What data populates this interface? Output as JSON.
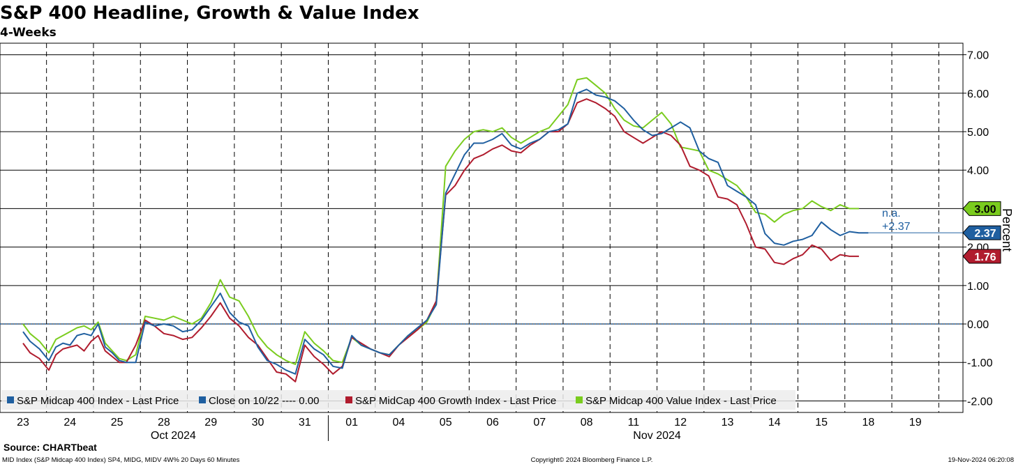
{
  "chart_data": {
    "type": "line",
    "title": "S&P 400 Headline, Growth & Value Index",
    "subtitle": "4-Weeks",
    "ylabel": "Percent",
    "ylim": [
      -2.3,
      7.3
    ],
    "yticks": [
      "7.00",
      "6.00",
      "5.00",
      "4.00",
      "3.00",
      "2.00",
      "1.00",
      "0.00",
      "-1.00",
      "-2.00"
    ],
    "grid": true,
    "days": [
      "23",
      "24",
      "25",
      "28",
      "29",
      "30",
      "31",
      "01",
      "04",
      "05",
      "06",
      "07",
      "08",
      "11",
      "12",
      "13",
      "14",
      "15",
      "18",
      "19"
    ],
    "months": [
      {
        "label": "Oct 2024",
        "center_day_index": 3.2
      },
      {
        "label": "Nov 2024",
        "center_day_index": 13.5
      }
    ],
    "legend": {
      "placement": "bottom-left",
      "entries": [
        {
          "label": "S&P Midcap 400 Index - Last Price",
          "color": "#1f5fa0"
        },
        {
          "label": "Close on 10/22 ---- 0.00",
          "color": "#1f5fa0"
        },
        {
          "label": "S&P MidCap 400 Growth Index - Last Price",
          "color": "#b01c2e"
        },
        {
          "label": "S&P Midcap 400 Value Index - Last Price",
          "color": "#7acc1e"
        }
      ]
    },
    "series": [
      {
        "name": "S&P Midcap 400 Index - Last Price",
        "color": "#1f5fa0",
        "x": [
          0,
          0.15,
          0.35,
          0.55,
          0.7,
          0.85,
          1.0,
          1.15,
          1.3,
          1.45,
          1.6,
          1.75,
          1.9,
          2.05,
          2.2,
          2.4,
          2.6,
          2.8,
          3.0,
          3.2,
          3.4,
          3.6,
          3.8,
          4.0,
          4.2,
          4.4,
          4.6,
          4.8,
          5.0,
          5.2,
          5.4,
          5.6,
          5.8,
          6.0,
          6.2,
          6.4,
          6.6,
          6.8,
          7.0,
          7.2,
          7.4,
          7.6,
          7.8,
          8.0,
          8.2,
          8.4,
          8.6,
          8.8,
          9.0,
          9.2,
          9.4,
          9.6,
          9.8,
          10.0,
          10.2,
          10.4,
          10.6,
          10.8,
          11.0,
          11.2,
          11.4,
          11.6,
          11.8,
          12.0,
          12.2,
          12.4,
          12.6,
          12.8,
          13.0,
          13.2,
          13.4,
          13.6,
          13.8,
          14.0,
          14.2,
          14.4,
          14.6,
          14.8,
          15.0,
          15.2,
          15.4,
          15.6,
          15.8,
          16.0,
          16.2,
          16.4,
          16.6,
          16.8,
          17.0,
          17.2,
          17.4,
          17.6,
          17.8,
          18.0
        ],
        "y": [
          -0.2,
          -0.45,
          -0.65,
          -0.95,
          -0.6,
          -0.5,
          -0.55,
          -0.3,
          -0.25,
          -0.3,
          0.0,
          -0.6,
          -0.75,
          -0.95,
          -1.0,
          -1.0,
          0.05,
          -0.05,
          0.0,
          -0.05,
          -0.2,
          -0.15,
          0.1,
          0.45,
          0.8,
          0.3,
          0.05,
          -0.05,
          -0.6,
          -0.95,
          -1.05,
          -1.2,
          -1.3,
          -0.4,
          -0.65,
          -0.8,
          -1.1,
          -1.15,
          -0.3,
          -0.55,
          -0.65,
          -0.75,
          -0.8,
          -0.55,
          -0.3,
          -0.1,
          0.1,
          0.5,
          3.4,
          3.9,
          4.4,
          4.7,
          4.7,
          4.8,
          4.95,
          4.65,
          4.55,
          4.7,
          4.8,
          5.0,
          5.05,
          5.2,
          6.0,
          6.1,
          5.95,
          5.9,
          5.8,
          5.6,
          5.3,
          5.05,
          4.9,
          4.95,
          5.1,
          5.25,
          5.1,
          4.5,
          4.3,
          4.2,
          3.6,
          3.45,
          3.3,
          3.1,
          2.35,
          2.1,
          2.05,
          2.15,
          2.2,
          2.3,
          2.65,
          2.45,
          2.3,
          2.4,
          2.37,
          2.37
        ]
      },
      {
        "name": "S&P MidCap 400 Growth Index - Last Price",
        "color": "#b01c2e",
        "x": [
          0,
          0.15,
          0.35,
          0.55,
          0.7,
          0.85,
          1.0,
          1.15,
          1.3,
          1.45,
          1.6,
          1.75,
          1.9,
          2.05,
          2.2,
          2.4,
          2.6,
          2.8,
          3.0,
          3.2,
          3.4,
          3.6,
          3.8,
          4.0,
          4.2,
          4.4,
          4.6,
          4.8,
          5.0,
          5.2,
          5.4,
          5.6,
          5.8,
          6.0,
          6.2,
          6.4,
          6.6,
          6.8,
          7.0,
          7.2,
          7.4,
          7.6,
          7.8,
          8.0,
          8.2,
          8.4,
          8.6,
          8.8,
          9.0,
          9.2,
          9.4,
          9.6,
          9.8,
          10.0,
          10.2,
          10.4,
          10.6,
          10.8,
          11.0,
          11.2,
          11.4,
          11.6,
          11.8,
          12.0,
          12.2,
          12.4,
          12.6,
          12.8,
          13.0,
          13.2,
          13.4,
          13.6,
          13.8,
          14.0,
          14.2,
          14.4,
          14.6,
          14.8,
          15.0,
          15.2,
          15.4,
          15.6,
          15.8,
          16.0,
          16.2,
          16.4,
          16.6,
          16.8,
          17.0,
          17.2,
          17.4,
          17.6,
          17.8
        ],
        "y": [
          -0.5,
          -0.75,
          -0.9,
          -1.2,
          -0.8,
          -0.65,
          -0.6,
          -0.55,
          -0.7,
          -0.45,
          -0.3,
          -0.7,
          -0.85,
          -1.0,
          -1.0,
          -0.55,
          0.1,
          -0.05,
          -0.25,
          -0.3,
          -0.4,
          -0.35,
          -0.1,
          0.2,
          0.55,
          0.15,
          -0.05,
          -0.35,
          -0.55,
          -0.9,
          -1.25,
          -1.3,
          -1.5,
          -0.55,
          -0.85,
          -1.05,
          -1.3,
          -1.1,
          -0.35,
          -0.5,
          -0.65,
          -0.75,
          -0.85,
          -0.55,
          -0.35,
          -0.15,
          0.1,
          0.6,
          3.35,
          3.6,
          4.0,
          4.3,
          4.4,
          4.55,
          4.65,
          4.5,
          4.45,
          4.65,
          4.8,
          5.0,
          5.0,
          5.2,
          5.75,
          5.85,
          5.75,
          5.6,
          5.4,
          5.0,
          4.85,
          4.7,
          4.85,
          5.0,
          4.9,
          4.65,
          4.1,
          4.0,
          3.85,
          3.3,
          3.25,
          3.1,
          2.6,
          2.0,
          1.95,
          1.6,
          1.55,
          1.7,
          1.8,
          2.05,
          1.95,
          1.65,
          1.8,
          1.76,
          1.76
        ]
      },
      {
        "name": "S&P Midcap 400 Value Index - Last Price",
        "color": "#7acc1e",
        "x": [
          0,
          0.15,
          0.35,
          0.55,
          0.7,
          0.85,
          1.0,
          1.15,
          1.3,
          1.45,
          1.6,
          1.75,
          1.9,
          2.05,
          2.2,
          2.4,
          2.6,
          2.8,
          3.0,
          3.2,
          3.4,
          3.6,
          3.8,
          4.0,
          4.2,
          4.4,
          4.6,
          4.8,
          5.0,
          5.2,
          5.4,
          5.6,
          5.8,
          6.0,
          6.2,
          6.4,
          6.6,
          6.8,
          7.0,
          7.2,
          7.4,
          7.6,
          7.8,
          8.0,
          8.2,
          8.4,
          8.6,
          8.8,
          9.0,
          9.2,
          9.4,
          9.6,
          9.8,
          10.0,
          10.2,
          10.4,
          10.6,
          10.8,
          11.0,
          11.2,
          11.4,
          11.6,
          11.8,
          12.0,
          12.2,
          12.4,
          12.6,
          12.8,
          13.0,
          13.2,
          13.4,
          13.6,
          13.8,
          14.0,
          14.2,
          14.4,
          14.6,
          14.8,
          15.0,
          15.2,
          15.4,
          15.6,
          15.8,
          16.0,
          16.2,
          16.4,
          16.6,
          16.8,
          17.0,
          17.2,
          17.4,
          17.6,
          17.8
        ],
        "y": [
          0.0,
          -0.25,
          -0.45,
          -0.75,
          -0.4,
          -0.3,
          -0.2,
          -0.1,
          -0.05,
          -0.15,
          0.05,
          -0.5,
          -0.7,
          -0.9,
          -0.95,
          -0.8,
          0.2,
          0.15,
          0.1,
          0.2,
          0.1,
          0.0,
          0.15,
          0.55,
          1.15,
          0.7,
          0.6,
          0.2,
          -0.3,
          -0.6,
          -0.8,
          -0.95,
          -1.05,
          -0.2,
          -0.5,
          -0.7,
          -0.95,
          -1.0,
          -0.35,
          -0.55,
          -0.65,
          -0.75,
          -0.8,
          -0.55,
          -0.3,
          -0.15,
          0.05,
          0.55,
          4.1,
          4.5,
          4.8,
          5.0,
          5.05,
          5.0,
          5.1,
          4.85,
          4.7,
          4.85,
          5.0,
          5.1,
          5.4,
          5.7,
          6.35,
          6.4,
          6.2,
          6.0,
          5.6,
          5.3,
          5.15,
          5.1,
          5.3,
          5.5,
          5.2,
          4.6,
          4.55,
          4.5,
          4.0,
          3.9,
          3.75,
          3.6,
          3.3,
          2.9,
          2.85,
          2.65,
          2.85,
          2.95,
          3.0,
          3.2,
          3.05,
          2.95,
          3.1,
          3.0,
          3.0
        ]
      }
    ],
    "reference_line": {
      "name": "Close on 10/22",
      "value": 0.0,
      "color": "#1f5fa0"
    },
    "last_values": [
      {
        "label": "3.00",
        "value": 3.0,
        "color": "#7acc1e",
        "text_color": "#000000"
      },
      {
        "label": "2.37",
        "value": 2.37,
        "color": "#1f5fa0",
        "text_color": "#ffffff"
      },
      {
        "label": "1.76",
        "value": 1.76,
        "color": "#b01c2e",
        "text_color": "#ffffff"
      }
    ],
    "annotation": {
      "line1": "n.a.",
      "line2": "+2.37",
      "color": "#1f5fa0"
    }
  },
  "footer": {
    "source": "Source: CHARTbeat",
    "description": "MID Index (S&P Midcap 400 Index) SP4, MIDG, MIDV 4W% 20 Days 60 Minutes",
    "copyright": "Copyright© 2024 Bloomberg Finance L.P.",
    "timestamp": "19-Nov-2024 06:20:08"
  }
}
